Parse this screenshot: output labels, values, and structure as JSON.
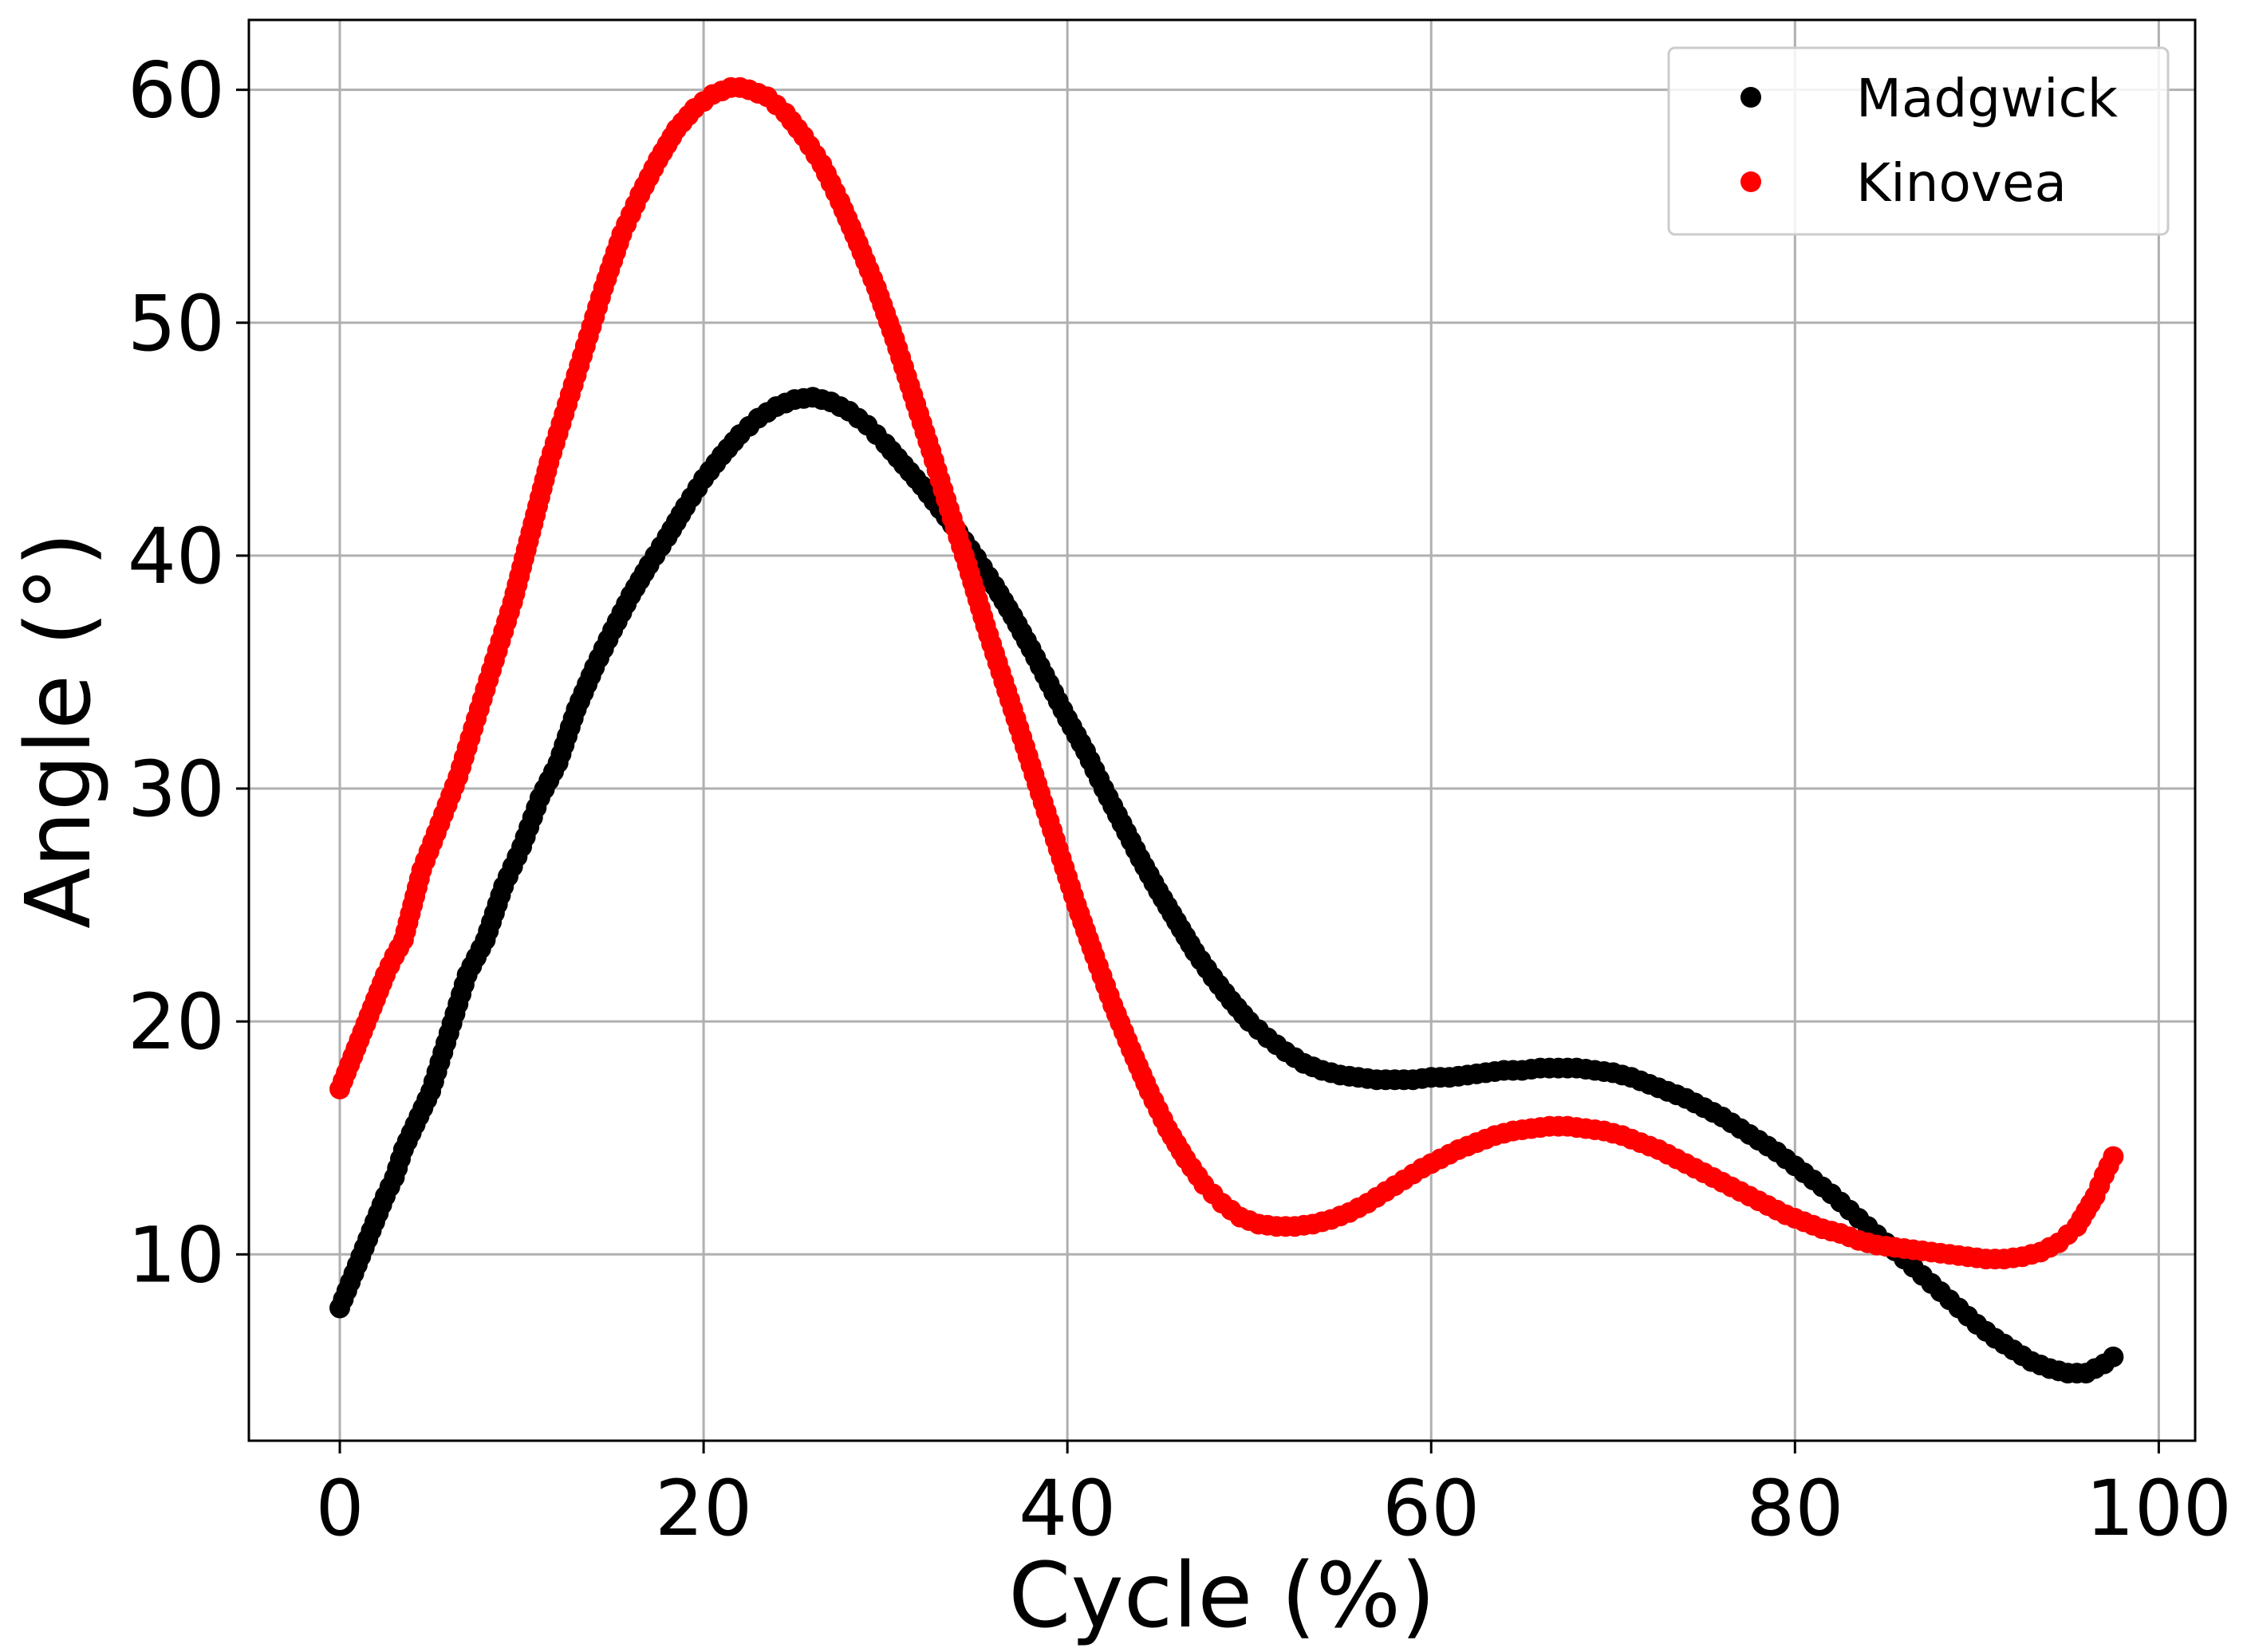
{
  "chart_data": {
    "type": "scatter",
    "title": "",
    "xlabel": "Cycle (%)",
    "ylabel": "Angle (°)",
    "xlim": [
      -5,
      102
    ],
    "ylim": [
      2,
      63
    ],
    "xticks": [
      0,
      20,
      40,
      60,
      80,
      100
    ],
    "yticks": [
      10,
      20,
      30,
      40,
      50,
      60
    ],
    "grid": true,
    "legend_position": "top-right",
    "series": [
      {
        "name": "Madgwick",
        "color": "#000000",
        "points": [
          [
            0,
            7.7
          ],
          [
            2.5,
            12.5
          ],
          [
            3,
            13.3
          ],
          [
            3.5,
            14.5
          ],
          [
            5,
            17
          ],
          [
            6,
            19.5
          ],
          [
            7,
            22
          ],
          [
            8,
            23.5
          ],
          [
            9,
            25.8
          ],
          [
            10,
            27.5
          ],
          [
            11,
            29.6
          ],
          [
            12,
            31.1
          ],
          [
            13,
            33.4
          ],
          [
            14,
            35.2
          ],
          [
            15,
            36.8
          ],
          [
            16,
            38.3
          ],
          [
            17,
            39.6
          ],
          [
            18,
            40.8
          ],
          [
            19,
            42.1
          ],
          [
            20,
            43.3
          ],
          [
            21,
            44.3
          ],
          [
            22,
            45.2
          ],
          [
            23,
            45.9
          ],
          [
            24,
            46.4
          ],
          [
            25,
            46.7
          ],
          [
            26,
            46.8
          ],
          [
            27,
            46.6
          ],
          [
            28,
            46.2
          ],
          [
            29,
            45.6
          ],
          [
            30,
            44.8
          ],
          [
            31,
            43.9
          ],
          [
            32,
            43.0
          ],
          [
            33,
            42.0
          ],
          [
            34,
            41.0
          ],
          [
            35,
            39.9
          ],
          [
            36,
            38.7
          ],
          [
            37,
            37.4
          ],
          [
            38,
            36.0
          ],
          [
            39,
            34.5
          ],
          [
            40,
            33.0
          ],
          [
            41,
            31.6
          ],
          [
            42,
            30.0
          ],
          [
            43,
            28.5
          ],
          [
            44,
            27.0
          ],
          [
            45,
            25.6
          ],
          [
            46,
            24.3
          ],
          [
            47,
            23.0
          ],
          [
            48,
            21.9
          ],
          [
            49,
            20.9
          ],
          [
            50,
            20.0
          ],
          [
            51,
            19.3
          ],
          [
            52,
            18.7
          ],
          [
            53,
            18.2
          ],
          [
            54,
            17.9
          ],
          [
            55,
            17.7
          ],
          [
            56,
            17.6
          ],
          [
            57,
            17.5
          ],
          [
            58,
            17.5
          ],
          [
            59,
            17.5
          ],
          [
            60,
            17.6
          ],
          [
            61,
            17.6
          ],
          [
            62,
            17.7
          ],
          [
            63,
            17.8
          ],
          [
            64,
            17.9
          ],
          [
            65,
            17.9
          ],
          [
            66,
            18.0
          ],
          [
            67,
            18.0
          ],
          [
            68,
            18.0
          ],
          [
            69,
            17.9
          ],
          [
            70,
            17.8
          ],
          [
            71,
            17.6
          ],
          [
            72,
            17.3
          ],
          [
            73,
            17.0
          ],
          [
            74,
            16.7
          ],
          [
            75,
            16.3
          ],
          [
            76,
            15.9
          ],
          [
            77,
            15.4
          ],
          [
            78,
            14.9
          ],
          [
            79,
            14.4
          ],
          [
            80,
            13.8
          ],
          [
            81,
            13.2
          ],
          [
            82,
            12.6
          ],
          [
            83,
            11.9
          ],
          [
            84,
            11.2
          ],
          [
            85,
            10.5
          ],
          [
            86,
            9.8
          ],
          [
            87,
            9.1
          ],
          [
            88,
            8.4
          ],
          [
            89,
            7.7
          ],
          [
            90,
            7.0
          ],
          [
            91,
            6.4
          ],
          [
            92,
            5.9
          ],
          [
            93,
            5.4
          ],
          [
            94,
            5.1
          ],
          [
            95,
            4.9
          ],
          [
            96,
            4.9
          ],
          [
            97,
            5.3
          ],
          [
            97.5,
            5.6
          ]
        ]
      },
      {
        "name": "Kinovea",
        "color": "#ff0000",
        "points": [
          [
            0,
            17.1
          ],
          [
            2.5,
            22
          ],
          [
            3,
            22.8
          ],
          [
            3.5,
            23.5
          ],
          [
            4.5,
            26.5
          ],
          [
            5.5,
            28.5
          ],
          [
            6.5,
            30.5
          ],
          [
            7.5,
            33
          ],
          [
            8.5,
            35.5
          ],
          [
            9.5,
            38
          ],
          [
            10.5,
            41
          ],
          [
            11.5,
            44
          ],
          [
            12.5,
            46.5
          ],
          [
            13.5,
            49
          ],
          [
            14.5,
            51.5
          ],
          [
            15.5,
            53.8
          ],
          [
            16.5,
            55.5
          ],
          [
            17.5,
            57
          ],
          [
            18.5,
            58.3
          ],
          [
            19.5,
            59.2
          ],
          [
            20.5,
            59.8
          ],
          [
            21.5,
            60.1
          ],
          [
            22,
            60.1
          ],
          [
            22.5,
            60.0
          ],
          [
            23.5,
            59.7
          ],
          [
            24.5,
            59.0
          ],
          [
            25.5,
            58.0
          ],
          [
            26.5,
            56.8
          ],
          [
            27.5,
            55.2
          ],
          [
            28.5,
            53.4
          ],
          [
            29.5,
            51.5
          ],
          [
            30.5,
            49.3
          ],
          [
            31.5,
            46.9
          ],
          [
            32.5,
            44.5
          ],
          [
            33.5,
            42.0
          ],
          [
            34.5,
            39.6
          ],
          [
            35.5,
            37.0
          ],
          [
            36.5,
            34.6
          ],
          [
            37.5,
            32.2
          ],
          [
            38.5,
            29.8
          ],
          [
            39.5,
            27.4
          ],
          [
            40.5,
            25.0
          ],
          [
            41.5,
            22.8
          ],
          [
            42.5,
            20.7
          ],
          [
            43.5,
            18.8
          ],
          [
            44.5,
            17.0
          ],
          [
            45.5,
            15.4
          ],
          [
            46.5,
            14.1
          ],
          [
            47.5,
            13.0
          ],
          [
            48.5,
            12.2
          ],
          [
            49.5,
            11.6
          ],
          [
            50.5,
            11.3
          ],
          [
            51.5,
            11.2
          ],
          [
            52.5,
            11.2
          ],
          [
            53.5,
            11.3
          ],
          [
            54.5,
            11.5
          ],
          [
            55.5,
            11.8
          ],
          [
            56.5,
            12.2
          ],
          [
            57.5,
            12.7
          ],
          [
            58.5,
            13.2
          ],
          [
            59.5,
            13.7
          ],
          [
            60.5,
            14.1
          ],
          [
            61.5,
            14.5
          ],
          [
            62.5,
            14.8
          ],
          [
            63.5,
            15.1
          ],
          [
            64.5,
            15.3
          ],
          [
            65.5,
            15.4
          ],
          [
            66.5,
            15.5
          ],
          [
            67.5,
            15.5
          ],
          [
            68.5,
            15.4
          ],
          [
            69.5,
            15.3
          ],
          [
            70.5,
            15.1
          ],
          [
            71.5,
            14.8
          ],
          [
            72.5,
            14.5
          ],
          [
            73.5,
            14.1
          ],
          [
            74.5,
            13.7
          ],
          [
            75.5,
            13.3
          ],
          [
            76.5,
            12.9
          ],
          [
            77.5,
            12.5
          ],
          [
            78.5,
            12.1
          ],
          [
            79.5,
            11.7
          ],
          [
            80.5,
            11.4
          ],
          [
            81.5,
            11.1
          ],
          [
            82.5,
            10.9
          ],
          [
            83.5,
            10.6
          ],
          [
            84.5,
            10.4
          ],
          [
            85.5,
            10.3
          ],
          [
            86.5,
            10.2
          ],
          [
            87.5,
            10.1
          ],
          [
            88.5,
            10.0
          ],
          [
            89.5,
            9.9
          ],
          [
            90.5,
            9.8
          ],
          [
            91.5,
            9.8
          ],
          [
            92.5,
            9.9
          ],
          [
            93.5,
            10.1
          ],
          [
            94.5,
            10.5
          ],
          [
            95.5,
            11.2
          ],
          [
            96.5,
            12.5
          ],
          [
            97,
            13.4
          ],
          [
            97.5,
            14.2
          ]
        ]
      }
    ]
  }
}
